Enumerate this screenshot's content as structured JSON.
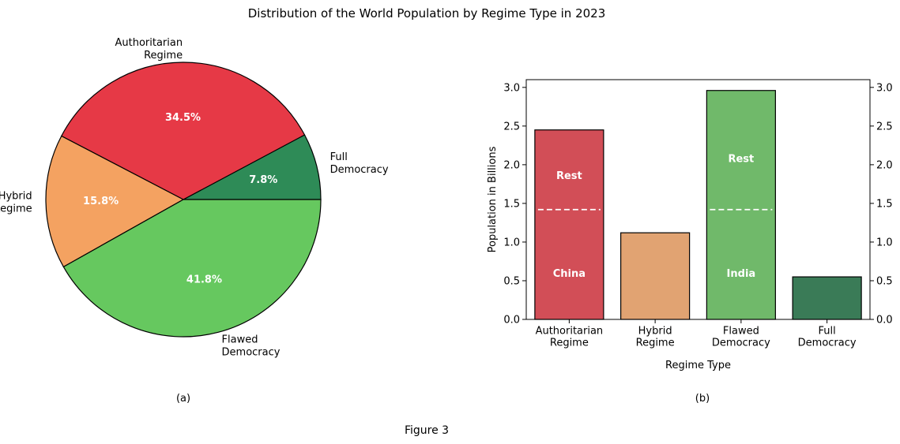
{
  "figure": {
    "title": "Distribution of the World Population by Regime Type in 2023",
    "caption": "Figure 3",
    "pie_caption": "(a)",
    "bar_caption": "(b)"
  },
  "chart_data": [
    {
      "type": "pie",
      "start_angle_deg": 0,
      "direction": "counterclockwise",
      "slices": [
        {
          "label": "Full\nDemocracy",
          "value": 7.8,
          "pct_label": "7.8%",
          "color": "#2e8b57"
        },
        {
          "label": "Authoritarian\nRegime",
          "value": 34.5,
          "pct_label": "34.5%",
          "color": "#e63946"
        },
        {
          "label": "Hybrid\nRegime",
          "value": 15.8,
          "pct_label": "15.8%",
          "color": "#f4a261"
        },
        {
          "label": "Flawed\nDemocracy",
          "value": 41.8,
          "pct_label": "41.8%",
          "color": "#66c85f"
        }
      ],
      "order_note": "Drawn counterclockwise starting at 0°: Full Democracy, Authoritarian Regime, Hybrid Regime, Flawed Democracy"
    },
    {
      "type": "bar",
      "xlabel": "Regime Type",
      "ylabel": "Population in Billions",
      "ylim": [
        0,
        3.1
      ],
      "yticks": [
        0.0,
        0.5,
        1.0,
        1.5,
        2.0,
        2.5,
        3.0
      ],
      "ytick_labels": [
        "0.0",
        "0.5",
        "1.0",
        "1.5",
        "2.0",
        "2.5",
        "3.0"
      ],
      "right_axis_ticks": true,
      "categories": [
        "Authoritarian\nRegime",
        "Hybrid\nRegime",
        "Flawed\nDemocracy",
        "Full\nDemocracy"
      ],
      "values": [
        2.45,
        1.12,
        2.96,
        0.55
      ],
      "colors": [
        "#d24e57",
        "#e1a372",
        "#70b96a",
        "#3a7b57"
      ],
      "splits": [
        {
          "category_index": 0,
          "at": 1.42,
          "lower_label": "China",
          "upper_label": "Rest"
        },
        {
          "category_index": 2,
          "at": 1.42,
          "lower_label": "India",
          "upper_label": "Rest"
        }
      ]
    }
  ]
}
